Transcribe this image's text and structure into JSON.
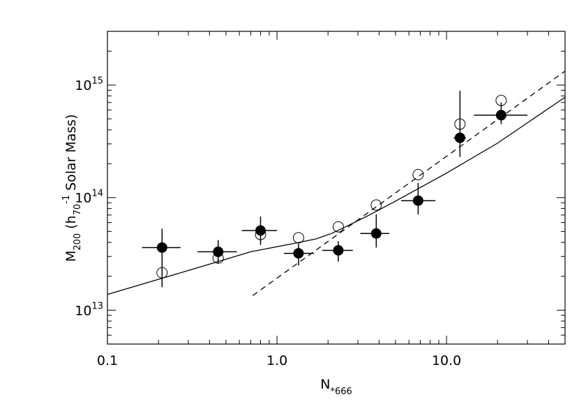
{
  "chart_data": {
    "type": "scatter",
    "x_scale": "log",
    "y_scale": "log",
    "xlim": [
      0.1,
      50
    ],
    "ylim": [
      5000000000000.0,
      3000000000000000.0
    ],
    "grid": false,
    "legend": "none",
    "xlabel": {
      "main": "N",
      "sub": "*666"
    },
    "ylabel": {
      "main": "M",
      "sub": "200",
      "mid": " (h",
      "sub2": "70",
      "sup": "-1",
      "tail": " Solar Mass)"
    },
    "x_ticks": [
      {
        "value": 0.1,
        "label": "0.1"
      },
      {
        "value": 1,
        "label": "1.0"
      },
      {
        "value": 10,
        "label": "10.0"
      }
    ],
    "y_ticks": [
      {
        "value": 10000000000000.0,
        "base": "10",
        "exp": "13"
      },
      {
        "value": 100000000000000.0,
        "base": "10",
        "exp": "14"
      },
      {
        "value": 1000000000000000.0,
        "base": "10",
        "exp": "15"
      }
    ],
    "series": [
      {
        "marker": "filled-circle",
        "points": [
          {
            "x": 0.21,
            "y": 36000000000000.0,
            "xerr": [
              0.16,
              0.27
            ],
            "yerr": [
              16000000000000.0,
              53000000000000.0
            ]
          },
          {
            "x": 0.45,
            "y": 33000000000000.0,
            "xerr": [
              0.34,
              0.58
            ],
            "yerr": [
              26000000000000.0,
              42000000000000.0
            ]
          },
          {
            "x": 0.8,
            "y": 51000000000000.0,
            "xerr": [
              0.62,
              1.0
            ],
            "yerr": [
              38000000000000.0,
              68000000000000.0
            ]
          },
          {
            "x": 1.34,
            "y": 32000000000000.0,
            "xerr": [
              1.1,
              1.65
            ],
            "yerr": [
              25000000000000.0,
              39000000000000.0
            ]
          },
          {
            "x": 2.3,
            "y": 34000000000000.0,
            "xerr": [
              1.85,
              2.8
            ],
            "yerr": [
              27000000000000.0,
              41000000000000.0
            ]
          },
          {
            "x": 3.85,
            "y": 48000000000000.0,
            "xerr": [
              3.1,
              4.6
            ],
            "yerr": [
              36000000000000.0,
              71000000000000.0
            ]
          },
          {
            "x": 6.8,
            "y": 94000000000000.0,
            "xerr": [
              5.4,
              8.6
            ],
            "yerr": [
              71000000000000.0,
              135000000000000.0
            ]
          },
          {
            "x": 12.0,
            "y": 340000000000000.0,
            "xerr": [
              11.0,
              13.0
            ],
            "yerr": [
              230000000000000.0,
              890000000000000.0
            ]
          },
          {
            "x": 21.0,
            "y": 540000000000000.0,
            "xerr": [
              14.5,
              30.0
            ],
            "yerr": [
              450000000000000.0,
              700000000000000.0
            ]
          }
        ]
      },
      {
        "marker": "open-circle",
        "points": [
          {
            "x": 0.21,
            "y": 21500000000000.0
          },
          {
            "x": 0.45,
            "y": 29000000000000.0
          },
          {
            "x": 0.8,
            "y": 47000000000000.0
          },
          {
            "x": 1.34,
            "y": 44000000000000.0
          },
          {
            "x": 2.3,
            "y": 55000000000000.0
          },
          {
            "x": 3.85,
            "y": 86000000000000.0
          },
          {
            "x": 6.8,
            "y": 160000000000000.0
          },
          {
            "x": 12.0,
            "y": 450000000000000.0
          },
          {
            "x": 21.0,
            "y": 730000000000000.0
          }
        ]
      }
    ],
    "fit_lines": [
      {
        "style": "solid",
        "points": [
          {
            "x": 0.1,
            "y": 13800000000000.0
          },
          {
            "x": 0.3,
            "y": 22500000000000.0
          },
          {
            "x": 0.7,
            "y": 33000000000000.0
          },
          {
            "x": 1.3,
            "y": 39500000000000.0
          },
          {
            "x": 1.7,
            "y": 43000000000000.0
          },
          {
            "x": 2.1,
            "y": 48000000000000.0
          },
          {
            "x": 2.6,
            "y": 56000000000000.0
          },
          {
            "x": 3.5,
            "y": 70000000000000.0
          },
          {
            "x": 5.0,
            "y": 93000000000000.0
          },
          {
            "x": 10.0,
            "y": 165000000000000.0
          },
          {
            "x": 20.0,
            "y": 305000000000000.0
          },
          {
            "x": 50.0,
            "y": 780000000000000.0
          }
        ]
      },
      {
        "style": "dashed",
        "points": [
          {
            "x": 0.72,
            "y": 13500000000000.0
          },
          {
            "x": 50.0,
            "y": 1330000000000000.0
          }
        ]
      }
    ]
  }
}
